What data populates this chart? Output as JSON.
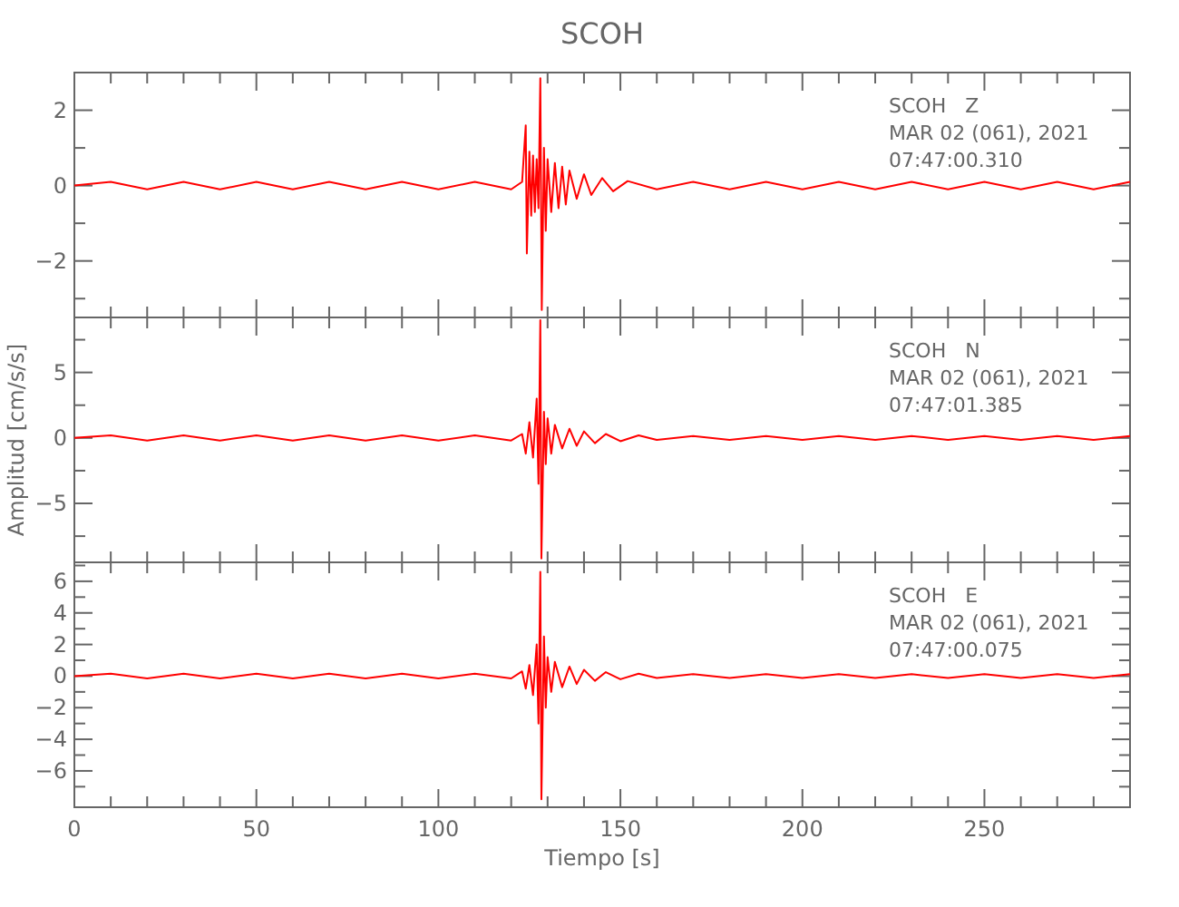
{
  "chart_data": [
    {
      "type": "line",
      "title": "SCOH",
      "annotations": [
        "SCOH   Z",
        "MAR 02 (061), 2021",
        "07:47:00.310"
      ],
      "tick_labels": "y",
      "xlim": [
        0,
        290
      ],
      "xticks": [
        0,
        {
          "value": 10,
          "label": null
        },
        {
          "value": 20,
          "label": null
        },
        {
          "value": 30,
          "label": null
        },
        {
          "value": 40,
          "label": null
        },
        50,
        {
          "value": 60,
          "label": null
        },
        {
          "value": 70,
          "label": null
        },
        {
          "value": 80,
          "label": null
        },
        {
          "value": 90,
          "label": null
        },
        100,
        {
          "value": 110,
          "label": null
        },
        {
          "value": 120,
          "label": null
        },
        {
          "value": 130,
          "label": null
        },
        {
          "value": 140,
          "label": null
        },
        150,
        {
          "value": 160,
          "label": null
        },
        {
          "value": 170,
          "label": null
        },
        {
          "value": 180,
          "label": null
        },
        {
          "value": 190,
          "label": null
        },
        200,
        {
          "value": 210,
          "label": null
        },
        {
          "value": 220,
          "label": null
        },
        {
          "value": 230,
          "label": null
        },
        {
          "value": 240,
          "label": null
        },
        250,
        {
          "value": 260,
          "label": null
        },
        {
          "value": 270,
          "label": null
        },
        {
          "value": 280,
          "label": null
        }
      ],
      "ylim": [
        -3.5,
        3
      ],
      "yticks": [
        {
          "value": -3,
          "label": null
        },
        -2,
        {
          "value": -1,
          "label": null
        },
        0,
        {
          "value": 1,
          "label": null
        },
        2
      ],
      "x": [
        0,
        10,
        20,
        30,
        40,
        50,
        60,
        70,
        80,
        90,
        100,
        110,
        120,
        123,
        124,
        124.3,
        125,
        125.5,
        126,
        126.5,
        127,
        127.5,
        128,
        128.4,
        129,
        129.5,
        130,
        131,
        132,
        133,
        134,
        135,
        136,
        138,
        140,
        142,
        145,
        148,
        152,
        160,
        170,
        180,
        190,
        200,
        210,
        220,
        230,
        240,
        250,
        260,
        270,
        280,
        290
      ],
      "series": [
        {
          "color": "#ff0000",
          "values": [
            0,
            0.1,
            -0.1,
            0.1,
            -0.1,
            0.1,
            -0.1,
            0.1,
            -0.1,
            0.1,
            -0.1,
            0.1,
            -0.1,
            0.1,
            1.6,
            -1.8,
            0.9,
            -0.8,
            0.8,
            -0.7,
            0.7,
            -0.6,
            2.85,
            -3.3,
            1.0,
            -1.2,
            0.7,
            -0.7,
            0.6,
            -0.6,
            0.5,
            -0.5,
            0.4,
            -0.35,
            0.3,
            -0.25,
            0.2,
            -0.15,
            0.12,
            -0.1,
            0.1,
            -0.1,
            0.1,
            -0.1,
            0.1,
            -0.1,
            0.1,
            -0.1,
            0.1,
            -0.1,
            0.1,
            -0.1,
            0.1
          ]
        }
      ]
    },
    {
      "type": "line",
      "ylabel": "Amplitud [cm/s/s]",
      "annotations": [
        "SCOH   N",
        "MAR 02 (061), 2021",
        "07:47:01.385"
      ],
      "tick_labels": "y",
      "xlim": [
        0,
        290
      ],
      "xticks": [
        0,
        {
          "value": 10,
          "label": null
        },
        {
          "value": 20,
          "label": null
        },
        {
          "value": 30,
          "label": null
        },
        {
          "value": 40,
          "label": null
        },
        50,
        {
          "value": 60,
          "label": null
        },
        {
          "value": 70,
          "label": null
        },
        {
          "value": 80,
          "label": null
        },
        {
          "value": 90,
          "label": null
        },
        100,
        {
          "value": 110,
          "label": null
        },
        {
          "value": 120,
          "label": null
        },
        {
          "value": 130,
          "label": null
        },
        {
          "value": 140,
          "label": null
        },
        150,
        {
          "value": 160,
          "label": null
        },
        {
          "value": 170,
          "label": null
        },
        {
          "value": 180,
          "label": null
        },
        {
          "value": 190,
          "label": null
        },
        200,
        {
          "value": 210,
          "label": null
        },
        {
          "value": 220,
          "label": null
        },
        {
          "value": 230,
          "label": null
        },
        {
          "value": 240,
          "label": null
        },
        250,
        {
          "value": 260,
          "label": null
        },
        {
          "value": 270,
          "label": null
        },
        {
          "value": 280,
          "label": null
        }
      ],
      "ylim": [
        -9.5,
        9.2
      ],
      "yticks": [
        {
          "value": -7.5,
          "label": null
        },
        -5,
        {
          "value": -2.5,
          "label": null
        },
        0,
        {
          "value": 2.5,
          "label": null
        },
        5,
        {
          "value": 7.5,
          "label": null
        }
      ],
      "x": [
        0,
        10,
        20,
        30,
        40,
        50,
        60,
        70,
        80,
        90,
        100,
        110,
        120,
        123,
        124,
        125,
        126,
        127,
        127.5,
        128,
        128.3,
        129,
        129.5,
        130,
        131,
        132,
        134,
        136,
        138,
        140,
        143,
        146,
        150,
        155,
        160,
        170,
        180,
        190,
        200,
        210,
        220,
        230,
        240,
        250,
        260,
        270,
        280,
        290
      ],
      "series": [
        {
          "color": "#ff0000",
          "values": [
            0,
            0.2,
            -0.2,
            0.2,
            -0.2,
            0.2,
            -0.2,
            0.2,
            -0.2,
            0.2,
            -0.2,
            0.2,
            -0.2,
            0.3,
            -1.2,
            1.2,
            -1.5,
            3,
            -3.5,
            9,
            -9.2,
            2,
            -2,
            1.5,
            -1.2,
            1,
            -0.8,
            0.7,
            -0.6,
            0.5,
            -0.4,
            0.3,
            -0.25,
            0.2,
            -0.15,
            0.15,
            -0.15,
            0.15,
            -0.15,
            0.15,
            -0.15,
            0.15,
            -0.15,
            0.15,
            -0.15,
            0.15,
            -0.15,
            0.15
          ]
        }
      ]
    },
    {
      "type": "line",
      "xlabel": "Tiempo [s]",
      "annotations": [
        "SCOH   E",
        "MAR 02 (061), 2021",
        "07:47:00.075"
      ],
      "xlim": [
        0,
        290
      ],
      "xticks": [
        0,
        {
          "value": 10,
          "label": null
        },
        {
          "value": 20,
          "label": null
        },
        {
          "value": 30,
          "label": null
        },
        {
          "value": 40,
          "label": null
        },
        50,
        {
          "value": 60,
          "label": null
        },
        {
          "value": 70,
          "label": null
        },
        {
          "value": 80,
          "label": null
        },
        {
          "value": 90,
          "label": null
        },
        100,
        {
          "value": 110,
          "label": null
        },
        {
          "value": 120,
          "label": null
        },
        {
          "value": 130,
          "label": null
        },
        {
          "value": 140,
          "label": null
        },
        150,
        {
          "value": 160,
          "label": null
        },
        {
          "value": 170,
          "label": null
        },
        {
          "value": 180,
          "label": null
        },
        {
          "value": 190,
          "label": null
        },
        200,
        {
          "value": 210,
          "label": null
        },
        {
          "value": 220,
          "label": null
        },
        {
          "value": 230,
          "label": null
        },
        {
          "value": 240,
          "label": null
        },
        250,
        {
          "value": 260,
          "label": null
        },
        {
          "value": 270,
          "label": null
        },
        {
          "value": 280,
          "label": null
        }
      ],
      "ylim": [
        -8.3,
        7.2
      ],
      "yticks": [
        {
          "value": -7,
          "label": null
        },
        -6,
        {
          "value": -5,
          "label": null
        },
        -4,
        {
          "value": -3,
          "label": null
        },
        -2,
        {
          "value": -1,
          "label": null
        },
        0,
        {
          "value": 1,
          "label": null
        },
        2,
        {
          "value": 3,
          "label": null
        },
        4,
        {
          "value": 5,
          "label": null
        },
        6,
        {
          "value": 7,
          "label": null
        }
      ],
      "x": [
        0,
        10,
        20,
        30,
        40,
        50,
        60,
        70,
        80,
        90,
        100,
        110,
        120,
        123,
        124,
        125,
        126,
        127,
        127.5,
        128,
        128.3,
        129,
        129.5,
        130,
        131,
        132,
        134,
        136,
        138,
        140,
        143,
        146,
        150,
        155,
        160,
        170,
        180,
        190,
        200,
        210,
        220,
        230,
        240,
        250,
        260,
        270,
        280,
        290
      ],
      "series": [
        {
          "color": "#ff0000",
          "values": [
            0,
            0.15,
            -0.15,
            0.15,
            -0.15,
            0.15,
            -0.15,
            0.15,
            -0.15,
            0.15,
            -0.15,
            0.15,
            -0.15,
            0.3,
            -0.8,
            0.7,
            -1.2,
            2,
            -3,
            6.6,
            -7.8,
            2.5,
            -2,
            1.2,
            -1,
            0.9,
            -0.7,
            0.6,
            -0.5,
            0.4,
            -0.3,
            0.25,
            -0.2,
            0.15,
            -0.12,
            0.12,
            -0.12,
            0.12,
            -0.12,
            0.12,
            -0.12,
            0.12,
            -0.12,
            0.12,
            -0.12,
            0.12,
            -0.12,
            0.12
          ]
        }
      ]
    }
  ]
}
